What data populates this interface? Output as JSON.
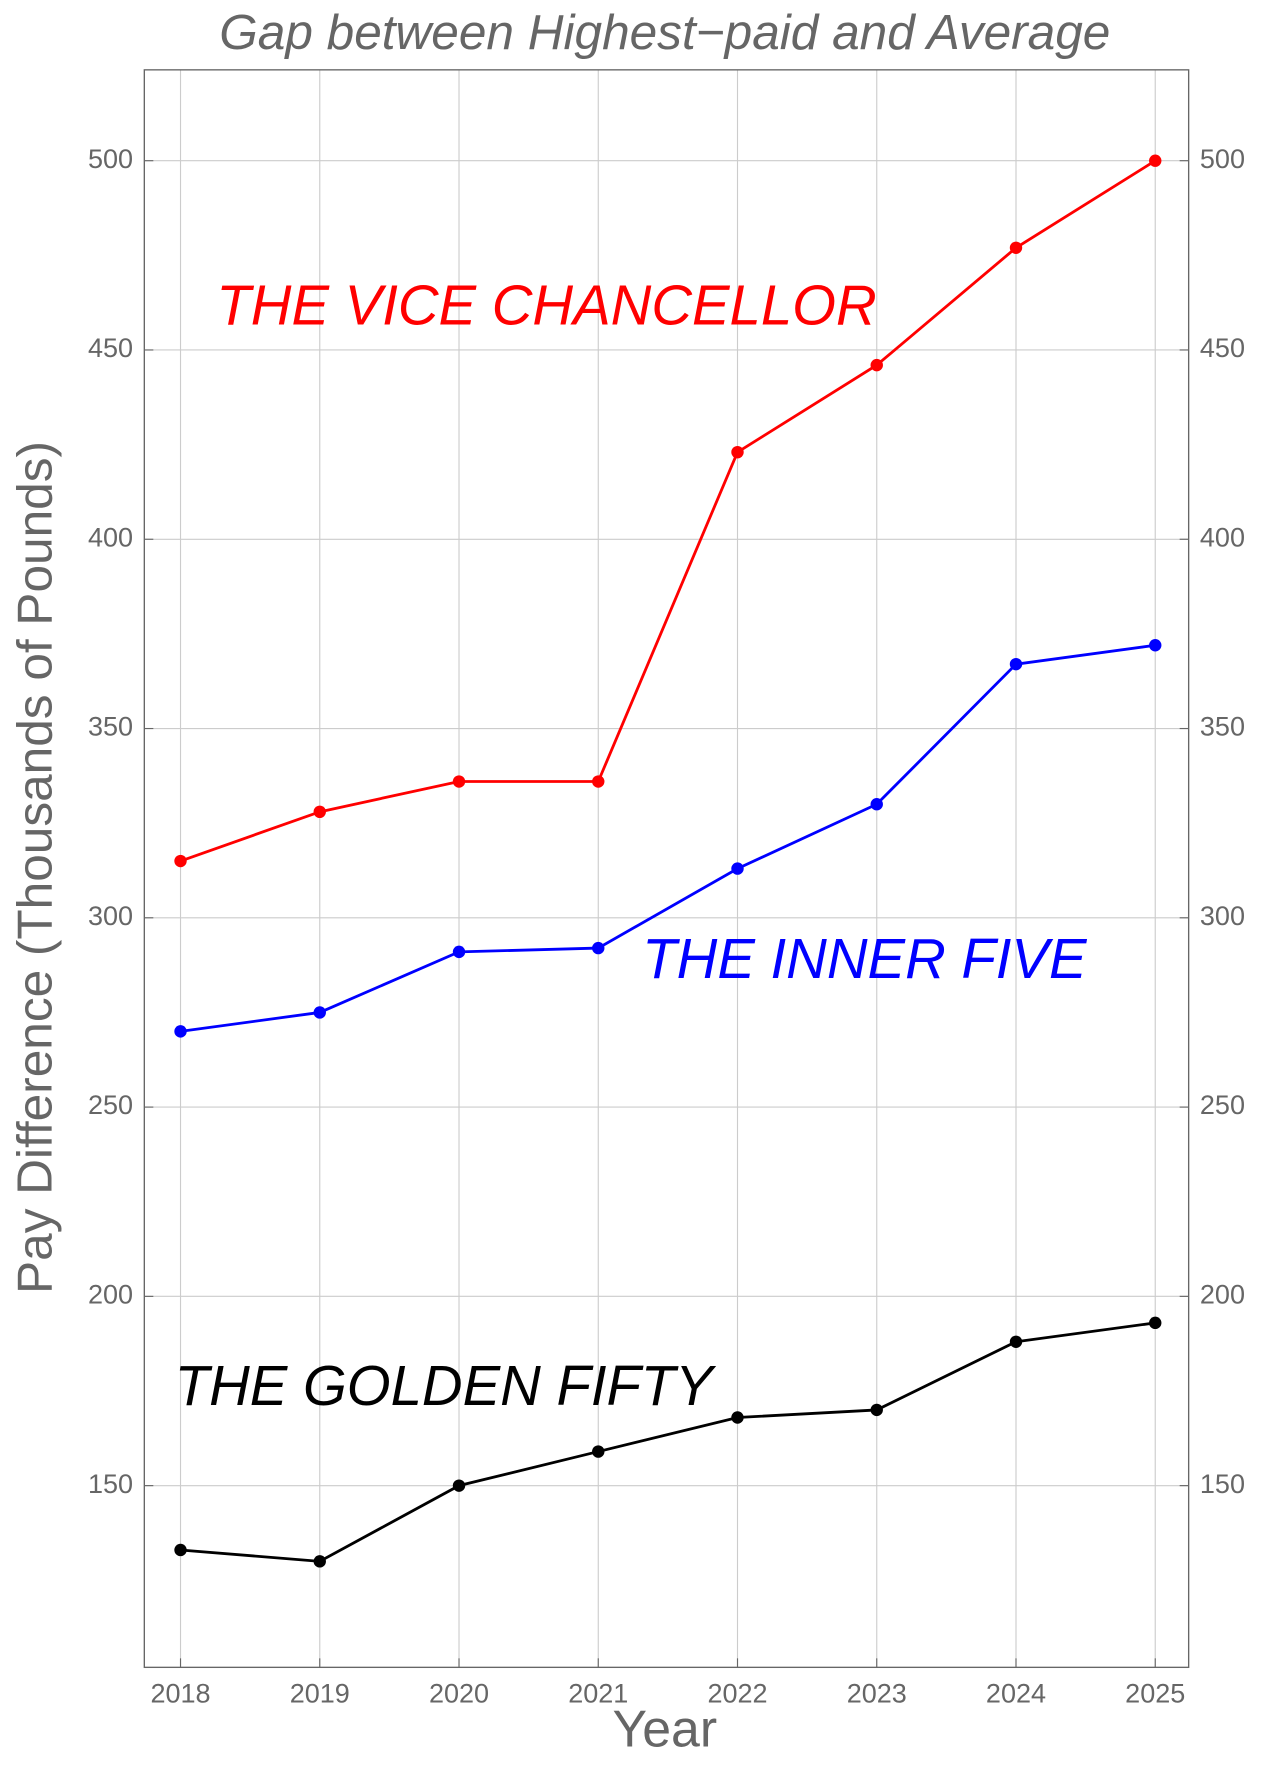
{
  "chart_data": {
    "type": "line",
    "title": "Gap between Highest−paid and Average",
    "x_label": "Year",
    "y_label": "Pay Difference (Thousands of Pounds)",
    "x": [
      2018,
      2019,
      2020,
      2021,
      2022,
      2023,
      2024,
      2025
    ],
    "series": [
      {
        "name": "THE VICE CHANCELLOR",
        "color": "#ff0000",
        "values": [
          315,
          328,
          336,
          336,
          423,
          446,
          477,
          500
        ]
      },
      {
        "name": "THE INNER FIVE",
        "color": "#0000ff",
        "values": [
          270,
          275,
          291,
          292,
          313,
          330,
          367,
          372
        ]
      },
      {
        "name": "THE GOLDEN FIFTY",
        "color": "#000000",
        "values": [
          133,
          130,
          150,
          159,
          168,
          170,
          188,
          193
        ]
      }
    ],
    "xlim": [
      2017.74,
      2025.24
    ],
    "xticks": [
      2018,
      2019,
      2020,
      2021,
      2022,
      2023,
      2024,
      2025
    ],
    "ylim": [
      102,
      524
    ],
    "yticks": [
      150,
      200,
      250,
      300,
      350,
      400,
      450,
      500
    ],
    "grid": true
  }
}
